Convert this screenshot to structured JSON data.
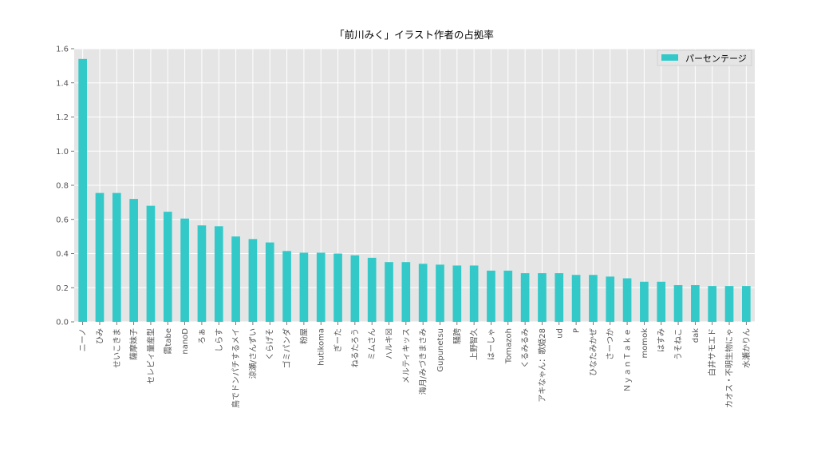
{
  "chart_data": {
    "type": "bar",
    "title": "「前川みく」イラスト作者の占拠率",
    "xlabel": "",
    "ylabel": "",
    "ylim": [
      0,
      1.6
    ],
    "yticks": [
      0.0,
      0.2,
      0.4,
      0.6,
      0.8,
      1.0,
      1.2,
      1.4,
      1.6
    ],
    "grid": true,
    "legend_position": "top-right",
    "categories": [
      "ニーノ",
      "ひみ",
      "せいこきま",
      "薩摩妹子",
      "セレビィ量産型",
      "霞tabe",
      "nanoD",
      "ろぁ",
      "しらす",
      "鳥でドンパチするメイ",
      "涼瀬/さんずい",
      "くらげそ",
      "ゴミパンダ",
      "粉屋",
      "hutikoma",
      "ぎーた",
      "ねるたろう",
      "ミムさん",
      "ハルキ☒",
      "メルティキッス",
      "海月/みづきまさみ",
      "Gupunetsu",
      "騒跨",
      "上野智久",
      "はーしゃ",
      "Tomazoh",
      "くるみるみ",
      "アキなゃん：歌姫28",
      "ud",
      "P",
      "ひなたみかぜ",
      "さーつか",
      "ＮｙａｎＴａｋｅ",
      "momok",
      "はすみ",
      "うそねこ",
      "dak",
      "白井サモエド",
      "カオス・不明生物にゃ",
      "水瀬かりん"
    ],
    "series": [
      {
        "name": "パーセンテージ",
        "color": "#33c9c9",
        "values": [
          1.54,
          0.755,
          0.755,
          0.72,
          0.68,
          0.645,
          0.605,
          0.565,
          0.56,
          0.5,
          0.485,
          0.465,
          0.415,
          0.405,
          0.405,
          0.4,
          0.39,
          0.375,
          0.35,
          0.35,
          0.34,
          0.335,
          0.33,
          0.33,
          0.3,
          0.3,
          0.285,
          0.285,
          0.285,
          0.275,
          0.275,
          0.265,
          0.255,
          0.235,
          0.235,
          0.215,
          0.215,
          0.21,
          0.21,
          0.21
        ]
      }
    ]
  }
}
